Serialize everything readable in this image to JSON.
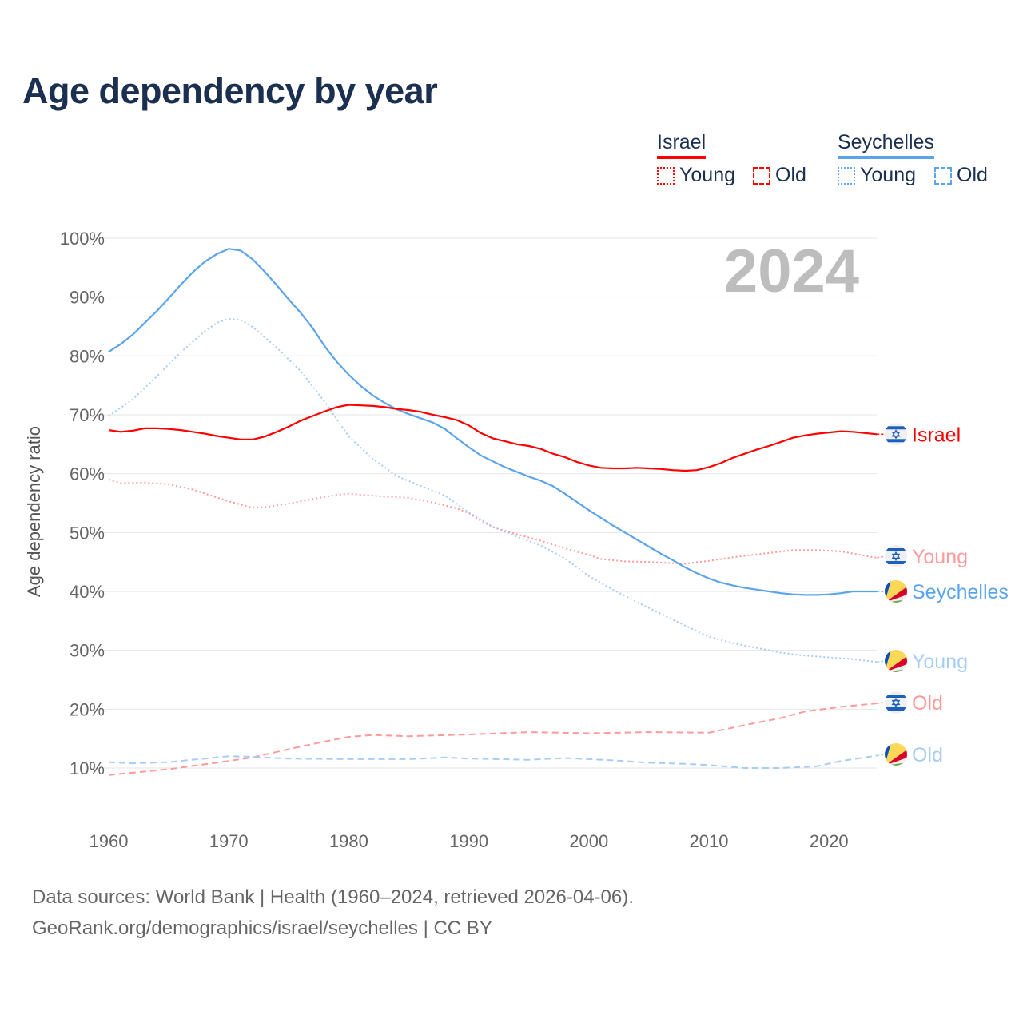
{
  "chart_data": {
    "type": "line",
    "title": "Age dependency by year",
    "ylabel": "Age dependency ratio",
    "xlabel": "",
    "xlim": [
      1960,
      2024
    ],
    "ylim": [
      10,
      100
    ],
    "xticks": [
      "1960",
      "1970",
      "1980",
      "1990",
      "2000",
      "2010",
      "2020"
    ],
    "yticks": [
      "10%",
      "20%",
      "30%",
      "40%",
      "50%",
      "60%",
      "70%",
      "80%",
      "90%",
      "100%"
    ],
    "grid": true,
    "current_year": "2024",
    "legend": {
      "groups": [
        {
          "name": "Israel",
          "color": "#ff0000",
          "items": [
            "Young",
            "Old"
          ]
        },
        {
          "name": "Seychelles",
          "color": "#5ba4ec",
          "items": [
            "Young",
            "Old"
          ]
        }
      ]
    },
    "series": [
      {
        "name": "Israel",
        "end_label": "Israel",
        "country": "israel",
        "style": "solid",
        "color": "#ff0000",
        "points": [
          [
            1960,
            67.4
          ],
          [
            1961,
            67.1
          ],
          [
            1962,
            67.3
          ],
          [
            1963,
            67.7
          ],
          [
            1964,
            67.7
          ],
          [
            1965,
            67.6
          ],
          [
            1966,
            67.4
          ],
          [
            1967,
            67.1
          ],
          [
            1968,
            66.8
          ],
          [
            1969,
            66.4
          ],
          [
            1970,
            66.1
          ],
          [
            1971,
            65.8
          ],
          [
            1972,
            65.8
          ],
          [
            1973,
            66.3
          ],
          [
            1974,
            67.1
          ],
          [
            1975,
            68.0
          ],
          [
            1976,
            69.0
          ],
          [
            1977,
            69.8
          ],
          [
            1978,
            70.6
          ],
          [
            1979,
            71.3
          ],
          [
            1980,
            71.7
          ],
          [
            1981,
            71.6
          ],
          [
            1982,
            71.5
          ],
          [
            1983,
            71.3
          ],
          [
            1984,
            71.0
          ],
          [
            1985,
            70.8
          ],
          [
            1986,
            70.5
          ],
          [
            1987,
            70.0
          ],
          [
            1988,
            69.6
          ],
          [
            1989,
            69.1
          ],
          [
            1990,
            68.2
          ],
          [
            1991,
            66.9
          ],
          [
            1992,
            66.0
          ],
          [
            1993,
            65.5
          ],
          [
            1994,
            65.0
          ],
          [
            1995,
            64.7
          ],
          [
            1996,
            64.2
          ],
          [
            1997,
            63.4
          ],
          [
            1998,
            62.8
          ],
          [
            1999,
            62.0
          ],
          [
            2000,
            61.4
          ],
          [
            2001,
            61.0
          ],
          [
            2002,
            60.9
          ],
          [
            2003,
            60.9
          ],
          [
            2004,
            61.0
          ],
          [
            2005,
            60.9
          ],
          [
            2006,
            60.8
          ],
          [
            2007,
            60.6
          ],
          [
            2008,
            60.5
          ],
          [
            2009,
            60.6
          ],
          [
            2010,
            61.1
          ],
          [
            2011,
            61.8
          ],
          [
            2012,
            62.7
          ],
          [
            2013,
            63.4
          ],
          [
            2014,
            64.1
          ],
          [
            2015,
            64.7
          ],
          [
            2016,
            65.4
          ],
          [
            2017,
            66.1
          ],
          [
            2018,
            66.5
          ],
          [
            2019,
            66.8
          ],
          [
            2020,
            67.0
          ],
          [
            2021,
            67.2
          ],
          [
            2022,
            67.1
          ],
          [
            2023,
            66.9
          ],
          [
            2024,
            66.7
          ]
        ]
      },
      {
        "name": "Israel Young",
        "end_label": "Young",
        "country": "israel",
        "style": "dotted",
        "color": "#ff9a9a",
        "points": [
          [
            1960,
            59.0
          ],
          [
            1961,
            58.4
          ],
          [
            1963,
            58.5
          ],
          [
            1965,
            58.2
          ],
          [
            1967,
            57.3
          ],
          [
            1970,
            55.3
          ],
          [
            1972,
            54.2
          ],
          [
            1973,
            54.3
          ],
          [
            1975,
            54.9
          ],
          [
            1977,
            55.7
          ],
          [
            1979,
            56.4
          ],
          [
            1980,
            56.6
          ],
          [
            1983,
            56.1
          ],
          [
            1985,
            55.9
          ],
          [
            1987,
            55.1
          ],
          [
            1989,
            54.1
          ],
          [
            1990,
            53.3
          ],
          [
            1991,
            52.0
          ],
          [
            1992,
            50.9
          ],
          [
            1994,
            49.7
          ],
          [
            1996,
            48.6
          ],
          [
            1998,
            47.3
          ],
          [
            2000,
            46.2
          ],
          [
            2001,
            45.5
          ],
          [
            2003,
            45.1
          ],
          [
            2005,
            45.0
          ],
          [
            2008,
            44.7
          ],
          [
            2010,
            45.2
          ],
          [
            2012,
            45.8
          ],
          [
            2014,
            46.3
          ],
          [
            2017,
            47.0
          ],
          [
            2019,
            47.0
          ],
          [
            2021,
            46.8
          ],
          [
            2024,
            45.7
          ]
        ]
      },
      {
        "name": "Israel Old",
        "end_label": "Old",
        "country": "israel",
        "style": "dashed",
        "color": "#ff9a9a",
        "points": [
          [
            1960,
            8.8
          ],
          [
            1965,
            9.8
          ],
          [
            1970,
            11.2
          ],
          [
            1972,
            11.8
          ],
          [
            1975,
            13.2
          ],
          [
            1978,
            14.5
          ],
          [
            1980,
            15.3
          ],
          [
            1982,
            15.6
          ],
          [
            1985,
            15.4
          ],
          [
            1990,
            15.7
          ],
          [
            1995,
            16.1
          ],
          [
            2000,
            15.9
          ],
          [
            2005,
            16.1
          ],
          [
            2010,
            16.0
          ],
          [
            2013,
            17.3
          ],
          [
            2016,
            18.5
          ],
          [
            2018,
            19.6
          ],
          [
            2021,
            20.4
          ],
          [
            2024,
            21.0
          ]
        ]
      },
      {
        "name": "Seychelles",
        "end_label": "Seychelles",
        "country": "seychelles",
        "style": "solid",
        "color": "#5ba4ec",
        "points": [
          [
            1960,
            80.7
          ],
          [
            1961,
            82.0
          ],
          [
            1962,
            83.6
          ],
          [
            1963,
            85.6
          ],
          [
            1964,
            87.6
          ],
          [
            1965,
            89.8
          ],
          [
            1966,
            92.1
          ],
          [
            1967,
            94.2
          ],
          [
            1968,
            96.0
          ],
          [
            1969,
            97.3
          ],
          [
            1970,
            98.2
          ],
          [
            1971,
            97.9
          ],
          [
            1972,
            96.4
          ],
          [
            1973,
            94.3
          ],
          [
            1974,
            92.0
          ],
          [
            1975,
            89.6
          ],
          [
            1976,
            87.3
          ],
          [
            1977,
            84.7
          ],
          [
            1978,
            81.6
          ],
          [
            1979,
            79.0
          ],
          [
            1980,
            76.8
          ],
          [
            1981,
            74.9
          ],
          [
            1982,
            73.3
          ],
          [
            1983,
            72.0
          ],
          [
            1984,
            70.9
          ],
          [
            1985,
            70.1
          ],
          [
            1986,
            69.4
          ],
          [
            1987,
            68.7
          ],
          [
            1988,
            67.6
          ],
          [
            1989,
            66.0
          ],
          [
            1990,
            64.5
          ],
          [
            1991,
            63.1
          ],
          [
            1992,
            62.1
          ],
          [
            1993,
            61.1
          ],
          [
            1994,
            60.3
          ],
          [
            1995,
            59.5
          ],
          [
            1996,
            58.8
          ],
          [
            1997,
            57.9
          ],
          [
            1998,
            56.6
          ],
          [
            1999,
            55.2
          ],
          [
            2000,
            53.8
          ],
          [
            2001,
            52.5
          ],
          [
            2002,
            51.2
          ],
          [
            2003,
            50.0
          ],
          [
            2004,
            48.8
          ],
          [
            2005,
            47.6
          ],
          [
            2006,
            46.4
          ],
          [
            2007,
            45.3
          ],
          [
            2008,
            44.1
          ],
          [
            2009,
            43.1
          ],
          [
            2010,
            42.2
          ],
          [
            2011,
            41.5
          ],
          [
            2012,
            41.0
          ],
          [
            2013,
            40.6
          ],
          [
            2014,
            40.3
          ],
          [
            2015,
            40.0
          ],
          [
            2016,
            39.7
          ],
          [
            2017,
            39.5
          ],
          [
            2018,
            39.4
          ],
          [
            2019,
            39.4
          ],
          [
            2020,
            39.5
          ],
          [
            2021,
            39.7
          ],
          [
            2022,
            40.0
          ],
          [
            2023,
            40.0
          ],
          [
            2024,
            40.0
          ]
        ]
      },
      {
        "name": "Seychelles Young",
        "end_label": "Young",
        "country": "seychelles",
        "style": "dotted",
        "color": "#a7cdf3",
        "points": [
          [
            1960,
            69.8
          ],
          [
            1962,
            72.6
          ],
          [
            1964,
            76.5
          ],
          [
            1966,
            80.6
          ],
          [
            1968,
            84.2
          ],
          [
            1969,
            85.6
          ],
          [
            1970,
            86.3
          ],
          [
            1971,
            86.1
          ],
          [
            1972,
            84.9
          ],
          [
            1974,
            81.4
          ],
          [
            1976,
            77.4
          ],
          [
            1978,
            72.2
          ],
          [
            1980,
            66.3
          ],
          [
            1982,
            62.5
          ],
          [
            1984,
            59.6
          ],
          [
            1986,
            57.9
          ],
          [
            1988,
            56.3
          ],
          [
            1990,
            53.4
          ],
          [
            1992,
            51.0
          ],
          [
            1994,
            49.3
          ],
          [
            1996,
            47.8
          ],
          [
            1998,
            45.6
          ],
          [
            2000,
            42.6
          ],
          [
            2002,
            40.3
          ],
          [
            2004,
            38.2
          ],
          [
            2006,
            36.2
          ],
          [
            2008,
            34.2
          ],
          [
            2010,
            32.3
          ],
          [
            2012,
            31.2
          ],
          [
            2014,
            30.4
          ],
          [
            2016,
            29.6
          ],
          [
            2018,
            29.1
          ],
          [
            2020,
            28.8
          ],
          [
            2022,
            28.5
          ],
          [
            2024,
            28.0
          ]
        ]
      },
      {
        "name": "Seychelles Old",
        "end_label": "Old",
        "country": "seychelles",
        "style": "dashed",
        "color": "#a7cdf3",
        "points": [
          [
            1960,
            11.0
          ],
          [
            1962,
            10.8
          ],
          [
            1965,
            11.0
          ],
          [
            1968,
            11.6
          ],
          [
            1970,
            12.0
          ],
          [
            1972,
            11.9
          ],
          [
            1975,
            11.6
          ],
          [
            1980,
            11.5
          ],
          [
            1985,
            11.5
          ],
          [
            1988,
            11.8
          ],
          [
            1990,
            11.6
          ],
          [
            1995,
            11.4
          ],
          [
            1998,
            11.7
          ],
          [
            2000,
            11.5
          ],
          [
            2002,
            11.3
          ],
          [
            2005,
            10.9
          ],
          [
            2008,
            10.7
          ],
          [
            2010,
            10.5
          ],
          [
            2013,
            10.0
          ],
          [
            2016,
            10.0
          ],
          [
            2019,
            10.3
          ],
          [
            2021,
            11.2
          ],
          [
            2024,
            12.1
          ]
        ]
      }
    ]
  },
  "footer": {
    "line1": "Data sources: World Bank | Health (1960–2024, retrieved 2026-04-06).",
    "line2": "GeoRank.org/demographics/israel/seychelles | CC BY"
  }
}
